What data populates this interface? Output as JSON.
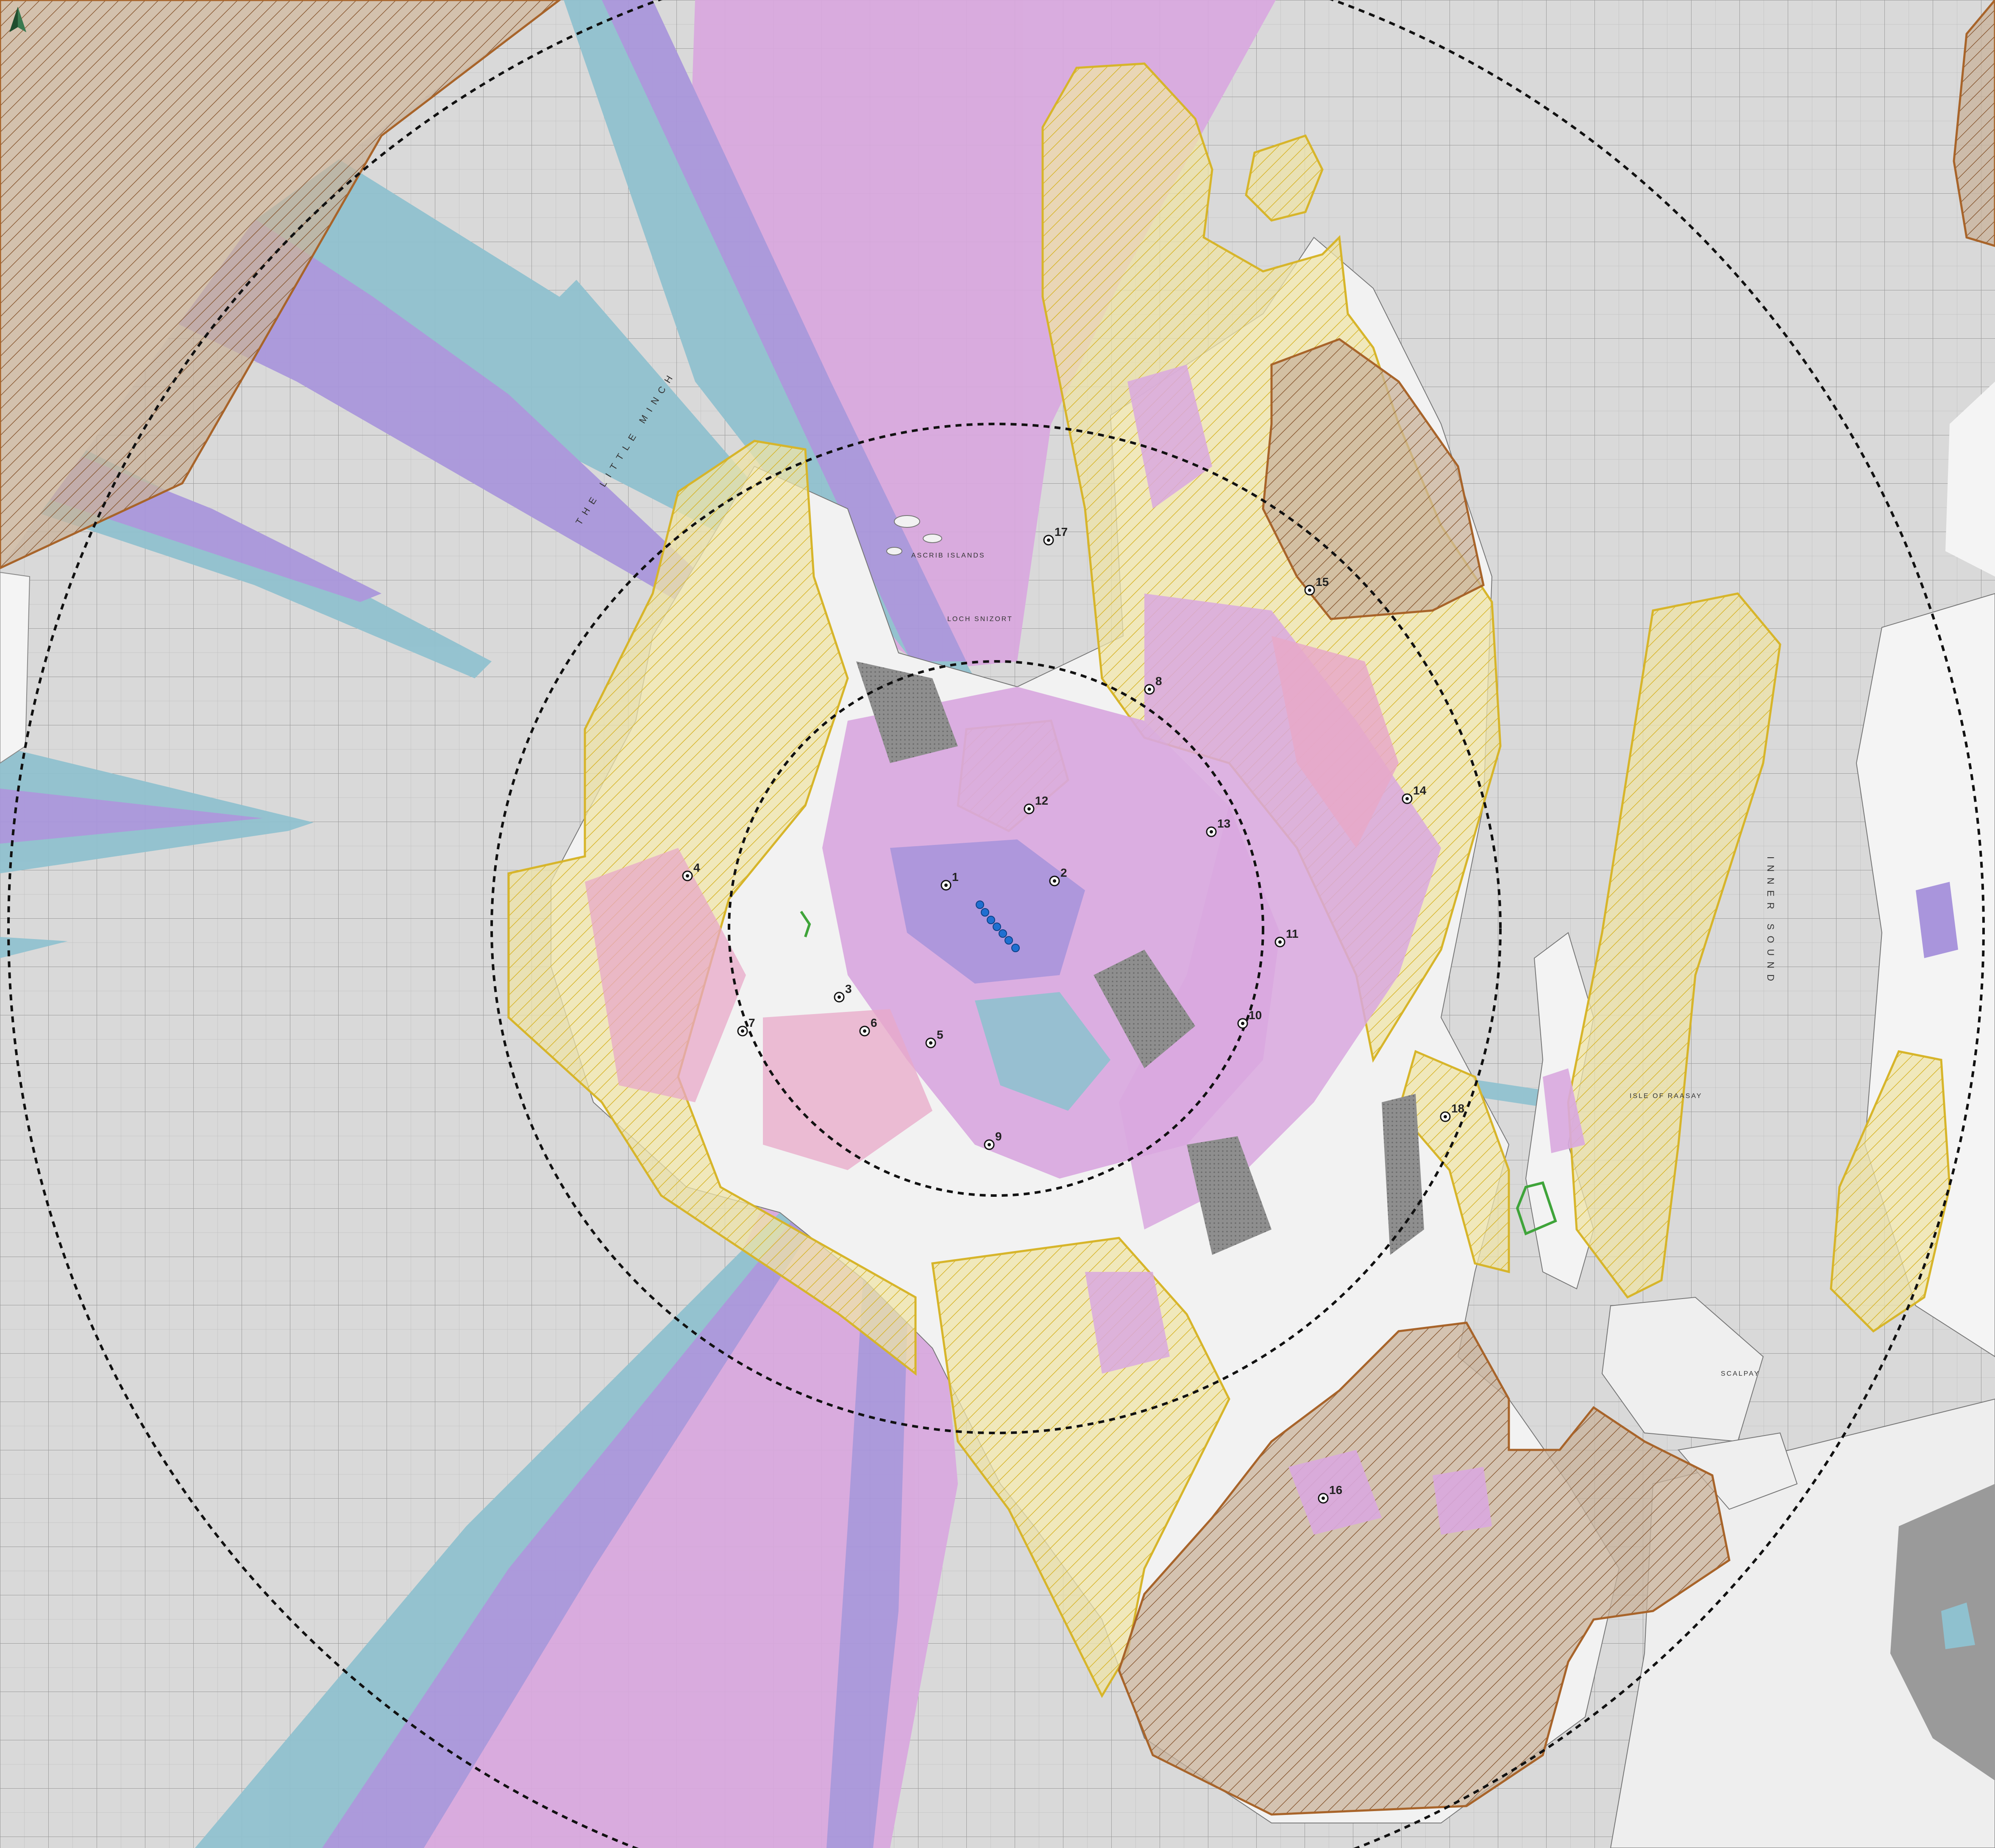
{
  "colors": {
    "sea": "#d9d9d9",
    "grid": "#9c9c9c",
    "zone_magenta": "#d9a8df",
    "zone_purple": "#a995dc",
    "zone_cyan": "#8fc1cf",
    "zone_pink": "#e8a8c8",
    "landscape_yellow_fill": "#efe4a8",
    "landscape_yellow_stroke": "#d7b52a",
    "landscape_brown_fill": "#c9b29a",
    "landscape_brown_stroke": "#a8642a",
    "land_white": "#f2f2f2",
    "land_grey": "#9a9a9a",
    "radius_ring": "#111111",
    "turbine": "#1f6fd1",
    "site_boundary": "#3fa43a"
  },
  "north_arrow": {
    "icon": "north-arrow-icon"
  },
  "viewpoints": [
    {
      "id": "1",
      "label": "1"
    },
    {
      "id": "2",
      "label": "2"
    },
    {
      "id": "3",
      "label": "3"
    },
    {
      "id": "4",
      "label": "4"
    },
    {
      "id": "5",
      "label": "5"
    },
    {
      "id": "6",
      "label": "6"
    },
    {
      "id": "7",
      "label": "7"
    },
    {
      "id": "8",
      "label": "8"
    },
    {
      "id": "9",
      "label": "9"
    },
    {
      "id": "10",
      "label": "10"
    },
    {
      "id": "11",
      "label": "11"
    },
    {
      "id": "12",
      "label": "12"
    },
    {
      "id": "13",
      "label": "13"
    },
    {
      "id": "14",
      "label": "14"
    },
    {
      "id": "15",
      "label": "15"
    },
    {
      "id": "16",
      "label": "16"
    },
    {
      "id": "17",
      "label": "17"
    },
    {
      "id": "18",
      "label": "18"
    }
  ],
  "place_labels": {
    "little_minch": "THE LITTLE MINCH",
    "ascrib_islands": "ASCRIB ISLANDS",
    "loch_snizort": "LOCH SNIZORT",
    "isle_of_raasay": "ISLE OF RAASAY",
    "scalpay": "SCALPAY",
    "inner_sound": "INNER SOUND"
  }
}
